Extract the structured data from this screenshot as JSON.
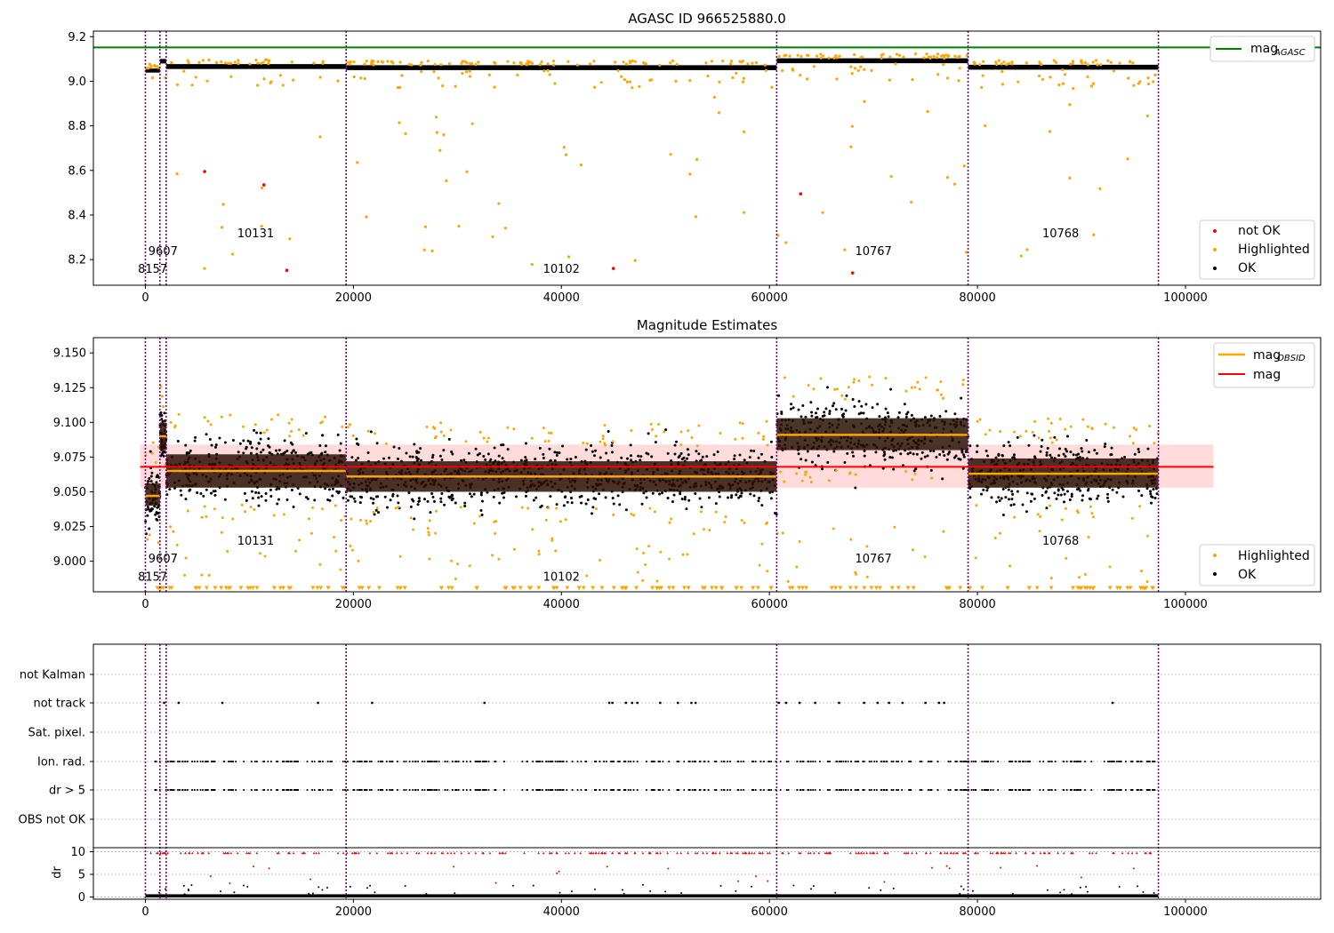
{
  "colors": {
    "ok": "#000000",
    "highlighted": "#ffa500",
    "not_ok": "#ff0000",
    "agasc": "#008000",
    "mean": "#ff0000",
    "obs_line": "#800080",
    "band": "#ffcccc",
    "box": "#2a1206"
  },
  "chart_data": [
    {
      "type": "scatter",
      "title": "AGASC ID 966525880.0",
      "xlim": [
        -5000,
        113000
      ],
      "ylim": [
        8.085,
        9.225
      ],
      "xticks": [
        "0",
        "20000",
        "40000",
        "60000",
        "80000",
        "100000"
      ],
      "xtick_values": [
        0,
        20000,
        40000,
        60000,
        80000,
        100000
      ],
      "yticks": [
        "8.2",
        "8.4",
        "8.6",
        "8.8",
        "9.0",
        "9.2"
      ],
      "ytick_values": [
        8.2,
        8.4,
        8.6,
        8.8,
        9.0,
        9.2
      ],
      "mag_agasc": 9.152,
      "obs_boundaries": [
        0,
        1400,
        2000,
        19300,
        60700,
        79100,
        97400
      ],
      "obs_labels": [
        {
          "text": "8157",
          "x": 700,
          "y": 8.14
        },
        {
          "text": "9607",
          "x": 1700,
          "y": 8.22
        },
        {
          "text": "10131",
          "x": 10600,
          "y": 8.3
        },
        {
          "text": "10102",
          "x": 40000,
          "y": 8.14
        },
        {
          "text": "10767",
          "x": 70000,
          "y": 8.22
        },
        {
          "text": "10768",
          "x": 88000,
          "y": 8.3
        }
      ],
      "bands": [
        {
          "x0": 0,
          "x1": 1400,
          "center": 9.048,
          "spread": 0.018
        },
        {
          "x0": 1400,
          "x1": 2000,
          "center": 9.09,
          "spread": 0.02
        },
        {
          "x0": 2000,
          "x1": 19300,
          "center": 9.066,
          "spread": 0.022
        },
        {
          "x0": 19300,
          "x1": 60700,
          "center": 9.061,
          "spread": 0.022
        },
        {
          "x0": 60700,
          "x1": 79100,
          "center": 9.092,
          "spread": 0.022
        },
        {
          "x0": 79100,
          "x1": 97400,
          "center": 9.063,
          "spread": 0.022
        }
      ],
      "not_ok_points": [
        [
          5700,
          8.595
        ],
        [
          11400,
          8.535
        ],
        [
          13600,
          8.152
        ],
        [
          45000,
          8.16
        ],
        [
          63000,
          8.495
        ],
        [
          68000,
          8.14
        ]
      ],
      "legend": [
        "mag",
        "AGASC",
        "not OK",
        "Highlighted",
        "OK"
      ]
    },
    {
      "type": "scatter",
      "title": "Magnitude Estimates",
      "xlim": [
        -5000,
        113000
      ],
      "ylim": [
        8.978,
        9.161
      ],
      "xticks": [
        "0",
        "20000",
        "40000",
        "60000",
        "80000",
        "100000"
      ],
      "xtick_values": [
        0,
        20000,
        40000,
        60000,
        80000,
        100000
      ],
      "yticks": [
        "9.000",
        "9.025",
        "9.050",
        "9.075",
        "9.100",
        "9.125",
        "9.150"
      ],
      "ytick_values": [
        9.0,
        9.025,
        9.05,
        9.075,
        9.1,
        9.125,
        9.15
      ],
      "mag_mean": 9.068,
      "mag_band": [
        9.053,
        9.084
      ],
      "mag_band_x": [
        -500,
        102700
      ],
      "obs_boundaries": [
        0,
        1400,
        2000,
        19300,
        60700,
        79100,
        97400
      ],
      "obs_mags": [
        {
          "x0": 0,
          "x1": 1400,
          "mag": 9.047,
          "lo": 9.04,
          "hi": 9.056
        },
        {
          "x0": 1400,
          "x1": 2000,
          "mag": 9.09,
          "lo": 9.08,
          "hi": 9.1
        },
        {
          "x0": 2000,
          "x1": 19300,
          "mag": 9.065,
          "lo": 9.053,
          "hi": 9.077
        },
        {
          "x0": 19300,
          "x1": 60700,
          "mag": 9.061,
          "lo": 9.05,
          "hi": 9.072
        },
        {
          "x0": 60700,
          "x1": 79100,
          "mag": 9.091,
          "lo": 9.08,
          "hi": 9.103
        },
        {
          "x0": 79100,
          "x1": 97400,
          "mag": 9.063,
          "lo": 9.053,
          "hi": 9.074
        }
      ],
      "obs_labels": [
        {
          "text": "8157",
          "x": 700,
          "y": 8.986
        },
        {
          "text": "9607",
          "x": 1700,
          "y": 8.999
        },
        {
          "text": "10131",
          "x": 10600,
          "y": 9.012
        },
        {
          "text": "10102",
          "x": 40000,
          "y": 8.986
        },
        {
          "text": "10767",
          "x": 70000,
          "y": 8.999
        },
        {
          "text": "10768",
          "x": 88000,
          "y": 9.012
        }
      ],
      "legend": [
        "mag",
        "OBSID",
        "mag",
        "Highlighted",
        "OK"
      ]
    },
    {
      "type": "scatter",
      "title": "",
      "categories": [
        "not Kalman",
        "not track",
        "Sat. pixel.",
        "Ion. rad.",
        "dr > 5",
        "OBS not OK"
      ],
      "xlim": [
        -5000,
        113000
      ],
      "xticks": [
        "0",
        "20000",
        "40000",
        "60000",
        "80000",
        "100000"
      ],
      "xtick_values": [
        0,
        20000,
        40000,
        60000,
        80000,
        100000
      ],
      "dr_ylabel": "dr",
      "dr_yticks": [
        "0",
        "5",
        "10"
      ],
      "dr_ytick_values": [
        0,
        5,
        10
      ],
      "dr_ylim": [
        -0.5,
        10.5
      ],
      "obs_boundaries": [
        0,
        1400,
        2000,
        19300,
        60700,
        79100,
        97400
      ],
      "not_track_x": [
        1800,
        3200,
        7400,
        16600,
        21800,
        32600,
        44600,
        44900,
        46200,
        46800,
        47300,
        49500,
        51200,
        52500,
        52900,
        60900,
        61600,
        62900,
        64400,
        66700,
        69100,
        70400,
        71500,
        72800,
        75000,
        76300,
        76800,
        93000
      ]
    }
  ]
}
